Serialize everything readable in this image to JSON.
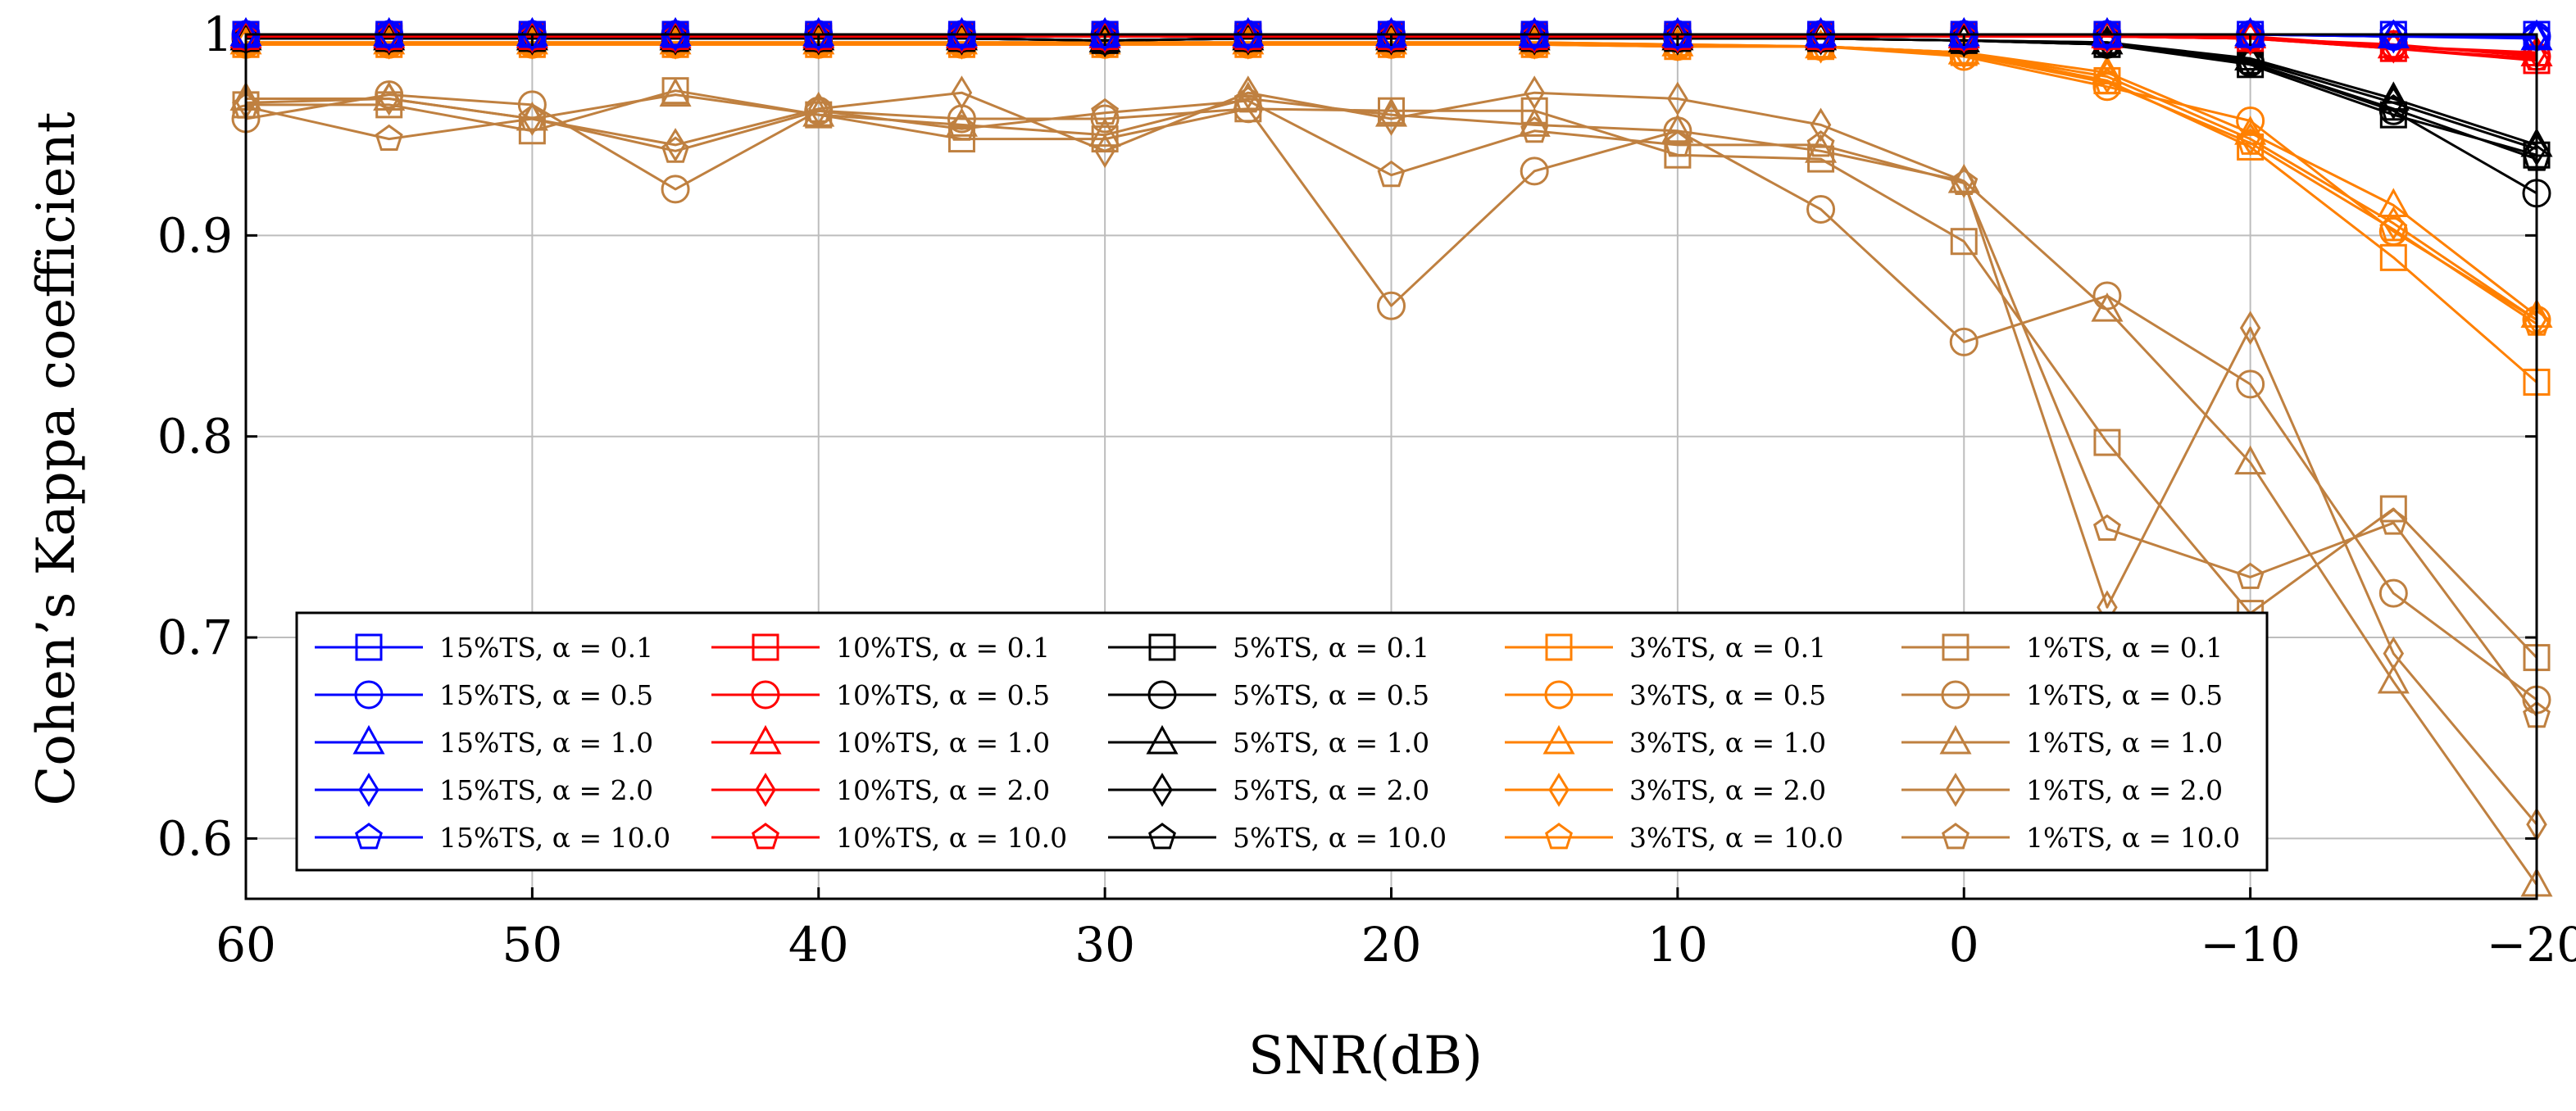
{
  "chart_data": {
    "type": "line",
    "title": "",
    "xlabel": "SNR(dB)",
    "ylabel": "Cohen’s Kappa coefficient",
    "xlim": [
      60,
      -20
    ],
    "ylim": [
      0.57,
      1.0
    ],
    "x_ticks": [
      {
        "value": 60,
        "label": "60"
      },
      {
        "value": 50,
        "label": "50"
      },
      {
        "value": 40,
        "label": "40"
      },
      {
        "value": 30,
        "label": "30"
      },
      {
        "value": 20,
        "label": "20"
      },
      {
        "value": 10,
        "label": "10"
      },
      {
        "value": 0,
        "label": "0"
      },
      {
        "value": -10,
        "label": "−10"
      },
      {
        "value": -20,
        "label": "−20"
      }
    ],
    "y_ticks": [
      {
        "value": 0.6,
        "label": "0.6"
      },
      {
        "value": 0.7,
        "label": "0.7"
      },
      {
        "value": 0.8,
        "label": "0.8"
      },
      {
        "value": 0.9,
        "label": "0.9"
      },
      {
        "value": 1.0,
        "label": "1"
      }
    ],
    "grid": true,
    "legend_position": "bottom-center",
    "colors": {
      "15%TS": "#0000ff",
      "10%TS": "#ff0000",
      "5%TS": "#000000",
      "3%TS": "#ff8000",
      "1%TS": "#bf8040"
    },
    "x": [
      60,
      55,
      50,
      45,
      40,
      35,
      30,
      25,
      20,
      15,
      10,
      5,
      0,
      -5,
      -10,
      -15,
      -20
    ],
    "series": [
      {
        "name": "15%TS, α = 0.1",
        "group": "15%TS",
        "marker": "square",
        "values": [
          1.0,
          1.0,
          1.0,
          1.0,
          1.0,
          1.0,
          1.0,
          1.0,
          1.0,
          1.0,
          1.0,
          1.0,
          1.0,
          1.0,
          1.0,
          1.0,
          1.0
        ]
      },
      {
        "name": "15%TS, α = 0.5",
        "group": "15%TS",
        "marker": "circle",
        "values": [
          1.0,
          1.0,
          1.0,
          1.0,
          1.0,
          1.0,
          1.0,
          1.0,
          1.0,
          1.0,
          1.0,
          1.0,
          1.0,
          1.0,
          1.0,
          0.999,
          0.999
        ]
      },
      {
        "name": "15%TS, α = 1.0",
        "group": "15%TS",
        "marker": "triangle",
        "values": [
          1.0,
          1.0,
          1.0,
          1.0,
          1.0,
          1.0,
          1.0,
          1.0,
          1.0,
          1.0,
          1.0,
          1.0,
          1.0,
          1.0,
          1.0,
          0.999,
          0.998
        ]
      },
      {
        "name": "15%TS, α = 2.0",
        "group": "15%TS",
        "marker": "diamond",
        "values": [
          1.0,
          1.0,
          1.0,
          1.0,
          1.0,
          1.0,
          1.0,
          1.0,
          1.0,
          1.0,
          1.0,
          1.0,
          1.0,
          1.0,
          1.0,
          0.999,
          0.999
        ]
      },
      {
        "name": "15%TS, α = 10.0",
        "group": "15%TS",
        "marker": "pentagon",
        "values": [
          1.0,
          1.0,
          1.0,
          1.0,
          1.0,
          1.0,
          1.0,
          1.0,
          1.0,
          1.0,
          1.0,
          1.0,
          1.0,
          1.0,
          1.0,
          1.0,
          0.999
        ]
      },
      {
        "name": "10%TS, α = 0.1",
        "group": "10%TS",
        "marker": "square",
        "values": [
          0.999,
          0.999,
          0.999,
          0.999,
          0.999,
          0.999,
          0.999,
          0.999,
          0.999,
          0.999,
          0.999,
          0.999,
          0.999,
          0.999,
          0.998,
          0.993,
          0.987
        ]
      },
      {
        "name": "10%TS, α = 0.5",
        "group": "10%TS",
        "marker": "circle",
        "values": [
          0.999,
          0.999,
          0.999,
          0.999,
          0.999,
          0.999,
          0.999,
          0.999,
          0.999,
          0.999,
          0.999,
          0.999,
          0.999,
          0.999,
          0.998,
          0.995,
          0.989
        ]
      },
      {
        "name": "10%TS, α = 1.0",
        "group": "10%TS",
        "marker": "triangle",
        "values": [
          0.999,
          0.999,
          0.999,
          0.999,
          0.999,
          0.999,
          0.999,
          0.999,
          0.999,
          0.999,
          0.999,
          0.999,
          0.999,
          0.999,
          0.999,
          0.994,
          0.99
        ]
      },
      {
        "name": "10%TS, α = 2.0",
        "group": "10%TS",
        "marker": "diamond",
        "values": [
          0.999,
          0.999,
          0.999,
          0.999,
          0.999,
          0.999,
          0.999,
          0.999,
          0.999,
          0.999,
          0.999,
          0.999,
          0.999,
          0.999,
          0.998,
          0.994,
          0.991
        ]
      },
      {
        "name": "10%TS, α = 10.0",
        "group": "10%TS",
        "marker": "pentagon",
        "values": [
          0.999,
          0.999,
          0.999,
          0.999,
          0.999,
          0.999,
          0.999,
          0.999,
          0.999,
          0.999,
          0.999,
          0.999,
          0.999,
          0.999,
          0.998,
          0.993,
          0.988
        ]
      },
      {
        "name": "5%TS, α = 0.1",
        "group": "5%TS",
        "marker": "square",
        "values": [
          0.998,
          0.998,
          0.998,
          0.998,
          0.998,
          0.998,
          0.997,
          0.998,
          0.998,
          0.998,
          0.998,
          0.998,
          0.997,
          0.995,
          0.985,
          0.96,
          0.94
        ]
      },
      {
        "name": "5%TS, α = 0.5",
        "group": "5%TS",
        "marker": "circle",
        "values": [
          0.998,
          0.998,
          0.998,
          0.998,
          0.998,
          0.998,
          0.997,
          0.998,
          0.998,
          0.998,
          0.998,
          0.998,
          0.997,
          0.995,
          0.986,
          0.962,
          0.921
        ]
      },
      {
        "name": "5%TS, α = 1.0",
        "group": "5%TS",
        "marker": "triangle",
        "values": [
          0.998,
          0.998,
          0.998,
          0.998,
          0.998,
          0.998,
          0.997,
          0.998,
          0.998,
          0.998,
          0.998,
          0.998,
          0.997,
          0.996,
          0.988,
          0.968,
          0.945
        ]
      },
      {
        "name": "5%TS, α = 2.0",
        "group": "5%TS",
        "marker": "diamond",
        "values": [
          0.998,
          0.998,
          0.998,
          0.998,
          0.998,
          0.998,
          0.997,
          0.998,
          0.998,
          0.998,
          0.998,
          0.998,
          0.997,
          0.996,
          0.987,
          0.966,
          0.943
        ]
      },
      {
        "name": "5%TS, α = 10.0",
        "group": "5%TS",
        "marker": "pentagon",
        "values": [
          0.998,
          0.998,
          0.998,
          0.998,
          0.998,
          0.998,
          0.997,
          0.998,
          0.998,
          0.998,
          0.998,
          0.998,
          0.997,
          0.995,
          0.986,
          0.963,
          0.938
        ]
      },
      {
        "name": "3%TS, α = 0.1",
        "group": "3%TS",
        "marker": "square",
        "values": [
          0.995,
          0.995,
          0.995,
          0.995,
          0.995,
          0.995,
          0.995,
          0.995,
          0.995,
          0.995,
          0.994,
          0.994,
          0.991,
          0.977,
          0.944,
          0.889,
          0.827
        ]
      },
      {
        "name": "3%TS, α = 0.5",
        "group": "3%TS",
        "marker": "circle",
        "values": [
          0.995,
          0.995,
          0.995,
          0.995,
          0.995,
          0.995,
          0.995,
          0.995,
          0.995,
          0.995,
          0.994,
          0.994,
          0.989,
          0.974,
          0.957,
          0.902,
          0.858
        ]
      },
      {
        "name": "3%TS, α = 1.0",
        "group": "3%TS",
        "marker": "triangle",
        "values": [
          0.996,
          0.996,
          0.996,
          0.996,
          0.996,
          0.996,
          0.996,
          0.996,
          0.996,
          0.996,
          0.995,
          0.994,
          0.991,
          0.981,
          0.951,
          0.915,
          0.86
        ]
      },
      {
        "name": "3%TS, α = 2.0",
        "group": "3%TS",
        "marker": "diamond",
        "values": [
          0.996,
          0.996,
          0.996,
          0.996,
          0.996,
          0.996,
          0.996,
          0.996,
          0.996,
          0.996,
          0.995,
          0.994,
          0.991,
          0.979,
          0.948,
          0.906,
          0.858
        ]
      },
      {
        "name": "3%TS, α = 10.0",
        "group": "3%TS",
        "marker": "pentagon",
        "values": [
          0.995,
          0.995,
          0.995,
          0.995,
          0.995,
          0.995,
          0.995,
          0.995,
          0.995,
          0.995,
          0.994,
          0.994,
          0.99,
          0.976,
          0.946,
          0.903,
          0.856
        ]
      },
      {
        "name": "1%TS, α = 0.1",
        "group": "1%TS",
        "marker": "square",
        "values": [
          0.965,
          0.965,
          0.952,
          0.972,
          0.96,
          0.948,
          0.948,
          0.963,
          0.962,
          0.962,
          0.94,
          0.938,
          0.897,
          0.797,
          0.712,
          0.764,
          0.69
        ]
      },
      {
        "name": "1%TS, α = 0.5",
        "group": "1%TS",
        "marker": "circle",
        "values": [
          0.958,
          0.97,
          0.965,
          0.923,
          0.962,
          0.958,
          0.958,
          0.963,
          0.865,
          0.932,
          0.952,
          0.913,
          0.847,
          0.87,
          0.826,
          0.722,
          0.669
        ]
      },
      {
        "name": "1%TS, α = 1.0",
        "group": "1%TS",
        "marker": "triangle",
        "values": [
          0.968,
          0.968,
          0.958,
          0.97,
          0.96,
          0.955,
          0.95,
          0.968,
          0.96,
          0.955,
          0.952,
          0.942,
          0.927,
          0.863,
          0.787,
          0.678,
          0.577
        ]
      },
      {
        "name": "1%TS, α = 2.0",
        "group": "1%TS",
        "marker": "diamond",
        "values": [
          0.966,
          0.968,
          0.958,
          0.945,
          0.963,
          0.971,
          0.942,
          0.971,
          0.958,
          0.971,
          0.968,
          0.955,
          0.927,
          0.715,
          0.854,
          0.692,
          0.607
        ]
      },
      {
        "name": "1%TS, α = 10.0",
        "group": "1%TS",
        "marker": "pentagon",
        "values": [
          0.964,
          0.948,
          0.958,
          0.942,
          0.962,
          0.953,
          0.961,
          0.967,
          0.93,
          0.952,
          0.945,
          0.945,
          0.926,
          0.754,
          0.73,
          0.757,
          0.661
        ]
      }
    ]
  }
}
